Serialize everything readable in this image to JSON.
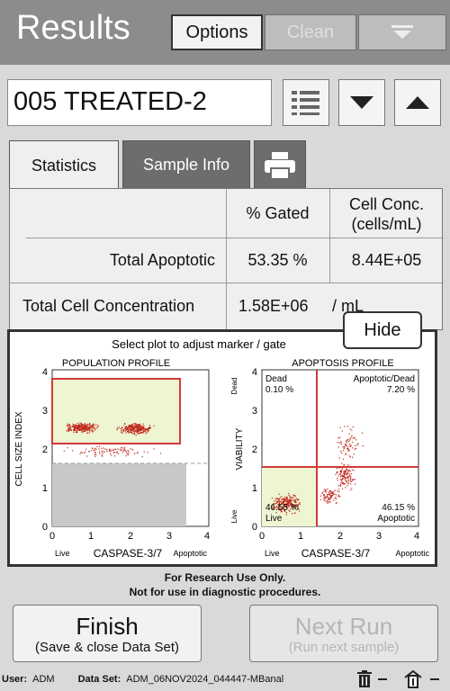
{
  "header": {
    "title": "Results",
    "options_label": "Options",
    "clean_label": "Clean"
  },
  "sample": {
    "name": "005 TREATED-2"
  },
  "tabs": [
    {
      "label": "Statistics"
    },
    {
      "label": "Sample Info"
    }
  ],
  "stats": {
    "col_gated": "% Gated",
    "col_conc_line1": "Cell Conc.",
    "col_conc_line2": "(cells/mL)",
    "row1_label": "Total Apoptotic",
    "row1_gated": "53.35 %",
    "row1_conc": "8.44E+05",
    "row2_label": "Total Cell Concentration",
    "row2_value": "1.58E+06",
    "row2_unit": "/ mL"
  },
  "plots": {
    "instruction": "Select plot to adjust marker / gate",
    "hide_label": "Hide",
    "population": {
      "title": "POPULATION PROFILE",
      "ylabel": "CELL SIZE INDEX",
      "xlabel": "CASPASE-3/7",
      "x_left": "Live",
      "x_right": "Apoptotic",
      "ticks": [
        "0",
        "1",
        "2",
        "3",
        "4"
      ]
    },
    "apoptosis": {
      "title": "APOPTOSIS PROFILE",
      "ylabel": "VIABILITY",
      "xlabel": "CASPASE-3/7",
      "x_left": "Live",
      "x_right": "Apoptotic",
      "y_top": "Dead",
      "y_bottom": "Live",
      "ticks": [
        "0",
        "1",
        "2",
        "3",
        "4"
      ],
      "q_dead_label": "Dead",
      "q_dead_pct": "0.10 %",
      "q_apodead_label": "Apoptotic/Dead",
      "q_apodead_pct": "7.20 %",
      "q_live_pct": "46.55 %",
      "q_live_label": "Live",
      "q_apo_pct": "46.15 %",
      "q_apo_label": "Apoptotic"
    }
  },
  "disclaimer": {
    "line1": "For Research Use Only.",
    "line2": "Not for use in diagnostic procedures."
  },
  "buttons": {
    "finish_main": "Finish",
    "finish_sub": "(Save & close Data Set)",
    "next_main": "Next Run",
    "next_sub": "(Run next sample)"
  },
  "status": {
    "user_label": "User:",
    "user_value": "ADM",
    "dataset_label": "Data Set:",
    "dataset_value": "ADM_06NOV2024_044447-MBanal"
  },
  "colors": {
    "header": "#8c8c8c",
    "gate": "#d23a3a",
    "gate_fill": "#eef5d2",
    "dots": "#c0271b"
  }
}
